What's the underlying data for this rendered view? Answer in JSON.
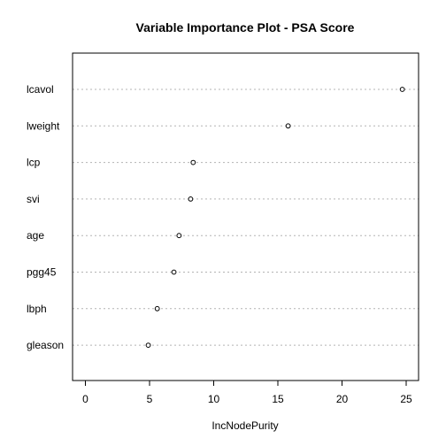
{
  "chart_data": {
    "type": "dot",
    "title": "Variable Importance Plot - PSA Score",
    "xlabel": "IncNodePurity",
    "ylabel": "",
    "xlim": [
      -1,
      25.5
    ],
    "xticks": [
      0,
      5,
      10,
      15,
      20,
      25
    ],
    "grid": "dotted horizontal guide per variable",
    "categories": [
      "lcavol",
      "lweight",
      "lcp",
      "svi",
      "age",
      "pgg45",
      "lbph",
      "gleason"
    ],
    "values": [
      24.7,
      15.8,
      8.4,
      8.2,
      7.3,
      6.9,
      5.6,
      4.9
    ]
  }
}
